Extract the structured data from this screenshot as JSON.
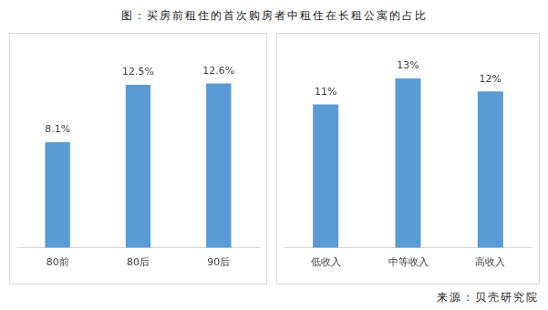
{
  "title": "图：买房前租住的首次购房者中租住在长租公寓的占比",
  "source": "来源：贝壳研究院",
  "chart_data": [
    {
      "type": "bar",
      "categories": [
        "80前",
        "80后",
        "90后"
      ],
      "values": [
        8.1,
        12.5,
        12.6
      ],
      "value_labels": [
        "8.1%",
        "12.5%",
        "12.6%"
      ],
      "color": "#5b9bd5",
      "ylim": [
        0,
        16
      ],
      "grid": false,
      "data_labels": true,
      "tick_labels": "x"
    },
    {
      "type": "bar",
      "categories": [
        "低收入",
        "中等收入",
        "高收入"
      ],
      "values": [
        11,
        13,
        12
      ],
      "value_labels": [
        "11%",
        "13%",
        "12%"
      ],
      "color": "#5b9bd5",
      "ylim": [
        0,
        16
      ],
      "grid": false,
      "data_labels": true,
      "tick_labels": "x"
    }
  ]
}
